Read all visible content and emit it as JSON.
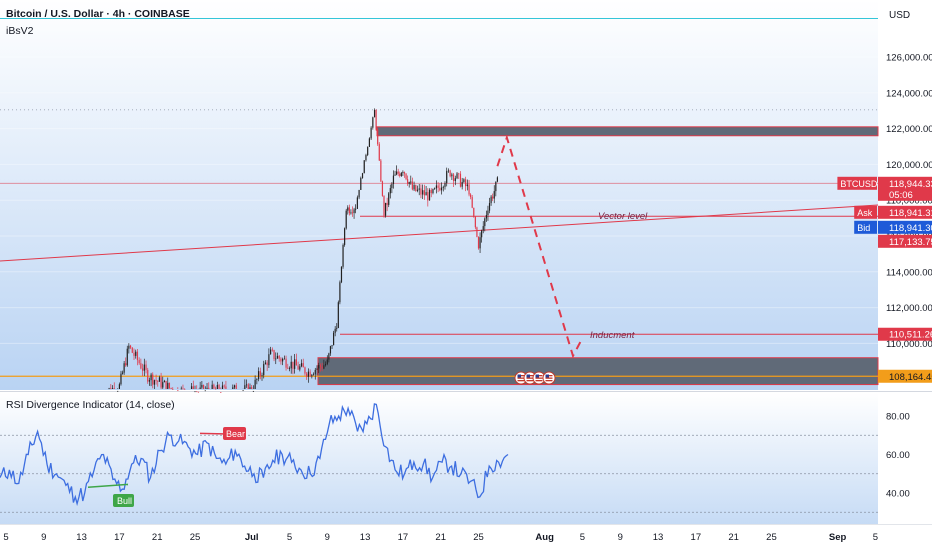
{
  "header": {
    "title": "Bitcoin / U.S. Dollar · 4h · COINBASE",
    "indicator": "iBsV2",
    "currency": "USD"
  },
  "colors": {
    "up": "#222222",
    "down": "#e0394a",
    "accent_red": "#e0394a",
    "blue": "#1e5ad8",
    "orange": "#f29d1a",
    "zone": "#606a78",
    "rsi_line": "#3d6ee0",
    "bull": "#3fa648",
    "bear": "#e0394a",
    "cyan": "#33c6d8"
  },
  "price_axis": {
    "ticks": [
      "126,000.00",
      "124,000.00",
      "122,000.00",
      "120,000.00",
      "118,000.00",
      "116,000.00",
      "114,000.00",
      "112,000.00",
      "110,000.00"
    ],
    "tick_values": [
      126000,
      124000,
      122000,
      120000,
      118000,
      116000,
      114000,
      112000,
      110000
    ],
    "labels": [
      {
        "text": "BTCUSD",
        "value": "118,944.33",
        "sub": "05:06",
        "style": "red"
      },
      {
        "text": "Ask",
        "value": "118,941.31",
        "style": "red"
      },
      {
        "text": "Bid",
        "value": "118,941.30",
        "style": "blue"
      },
      {
        "text": "",
        "value": "117,133.75",
        "style": "red"
      },
      {
        "text": "",
        "value": "110,511.26",
        "style": "red"
      },
      {
        "text": "",
        "value": "108,164.45",
        "style": "orange"
      }
    ]
  },
  "annotations": {
    "vector_level": "Vector level",
    "inducement": "Inducment"
  },
  "rsi": {
    "title": "RSI Divergence Indicator (14, close)",
    "ticks": [
      "80.00",
      "60.00",
      "40.00"
    ],
    "tick_values": [
      80,
      60,
      40
    ],
    "bull_label": "Bull",
    "bear_label": "Bear"
  },
  "time_axis": {
    "ticks": [
      "5",
      "9",
      "13",
      "17",
      "21",
      "25",
      "Jul",
      "5",
      "9",
      "13",
      "17",
      "21",
      "25",
      "Aug",
      "5",
      "9",
      "13",
      "17",
      "21",
      "25",
      "Sep",
      "5"
    ]
  },
  "chart_data": {
    "type": "candlestick",
    "symbol": "BTCUSD",
    "timeframe": "4h",
    "ylim": [
      107000,
      127500
    ],
    "levels": {
      "current": 118944.33,
      "ask": 118941.31,
      "bid": 118941.3,
      "vector_level": 117133.75,
      "inducement": 110511.26,
      "orange_line": 108164.45
    },
    "zones": [
      {
        "from": 121600,
        "to": 122100
      },
      {
        "from": 107700,
        "to": 109200
      }
    ],
    "projected_path": [
      {
        "date": "Jul 27",
        "price": 119900
      },
      {
        "date": "Jul 28",
        "price": 121500
      },
      {
        "date": "Aug 4",
        "price": 109300
      },
      {
        "date": "Aug 5",
        "price": 110300
      }
    ],
    "price_series": [
      {
        "date": "Jun 15",
        "price": 107200
      },
      {
        "date": "Jun 17",
        "price": 107600
      },
      {
        "date": "Jun 18",
        "price": 109800
      },
      {
        "date": "Jun 20",
        "price": 108200
      },
      {
        "date": "Jun 23",
        "price": 107300
      },
      {
        "date": "Jul 1",
        "price": 107400
      },
      {
        "date": "Jul 3",
        "price": 109400
      },
      {
        "date": "Jul 7",
        "price": 108400
      },
      {
        "date": "Jul 9",
        "price": 108900
      },
      {
        "date": "Jul 10",
        "price": 111200
      },
      {
        "date": "Jul 11",
        "price": 117500
      },
      {
        "date": "Jul 12",
        "price": 117700
      },
      {
        "date": "Jul 14",
        "price": 123000
      },
      {
        "date": "Jul 15",
        "price": 117200
      },
      {
        "date": "Jul 16",
        "price": 119200
      },
      {
        "date": "Jul 17",
        "price": 119800
      },
      {
        "date": "Jul 18",
        "price": 118600
      },
      {
        "date": "Jul 20",
        "price": 118200
      },
      {
        "date": "Jul 22",
        "price": 119600
      },
      {
        "date": "Jul 24",
        "price": 118600
      },
      {
        "date": "Jul 25",
        "price": 115400
      },
      {
        "date": "Jul 26",
        "price": 117700
      },
      {
        "date": "Jul 27",
        "price": 118944
      }
    ],
    "rsi_series": [
      48,
      52,
      45,
      60,
      72,
      55,
      50,
      44,
      38,
      40,
      52,
      60,
      47,
      42,
      55,
      58,
      48,
      62,
      70,
      67,
      64,
      60,
      66,
      58,
      55,
      62,
      54,
      50,
      48,
      57,
      60,
      56,
      52,
      50,
      58,
      76,
      80,
      84,
      72,
      76,
      86,
      64,
      52,
      50,
      56,
      55,
      48,
      56,
      54,
      50,
      46,
      38,
      54,
      56,
      60
    ]
  }
}
